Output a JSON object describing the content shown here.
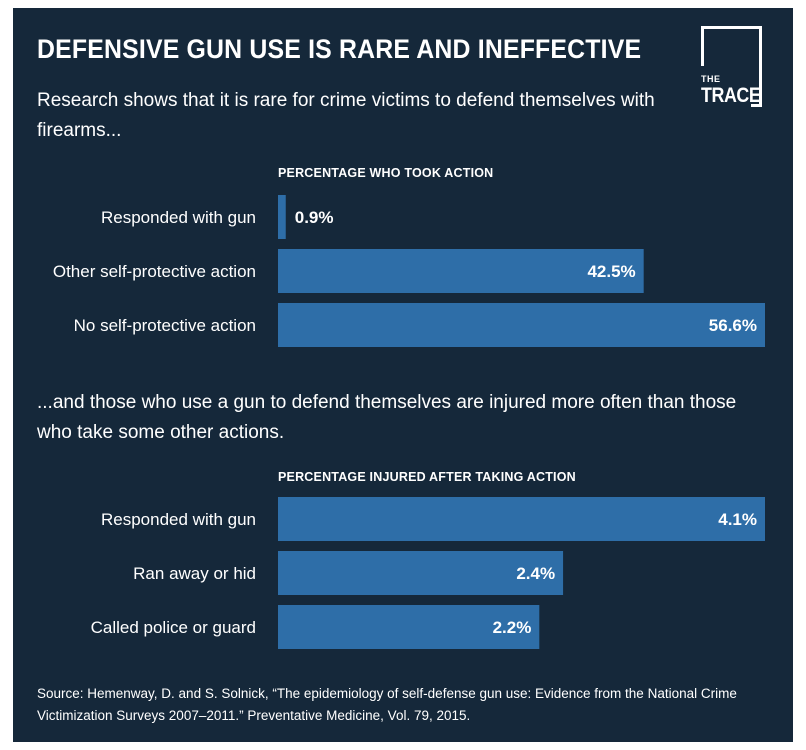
{
  "title": "DEFENSIVE GUN USE IS RARE AND INEFFECTIVE",
  "subtitle": "Research shows that it is rare for crime victims to defend themselves with firearms...",
  "subtitle2": "...and those who use a gun to defend themselves are injured more often than those who take some other actions.",
  "logo": {
    "top": "THE",
    "bottom": "TRACE"
  },
  "colors": {
    "background": "#15283a",
    "bar": "#2e6ea8",
    "text": "#ffffff"
  },
  "chart_data": [
    {
      "type": "bar",
      "orientation": "horizontal",
      "title": "PERCENTAGE WHO TOOK ACTION",
      "categories": [
        "Responded with gun",
        "Other self-protective action",
        "No self-protective action"
      ],
      "values": [
        0.9,
        42.5,
        56.6
      ],
      "labels": [
        "0.9%",
        "42.5%",
        "56.6%"
      ],
      "xmax": 56.6
    },
    {
      "type": "bar",
      "orientation": "horizontal",
      "title": "PERCENTAGE INJURED AFTER TAKING ACTION",
      "categories": [
        "Responded with gun",
        "Ran away or hid",
        "Called police or guard"
      ],
      "values": [
        4.1,
        2.4,
        2.2
      ],
      "labels": [
        "4.1%",
        "2.4%",
        "2.2%"
      ],
      "xmax": 4.1
    }
  ],
  "source": "Source: Hemenway, D. and S. Solnick, “The epidemiology of self-defense gun use: Evidence from the National Crime Victimization Surveys 2007–2011.” Preventative Medicine, Vol. 79, 2015."
}
